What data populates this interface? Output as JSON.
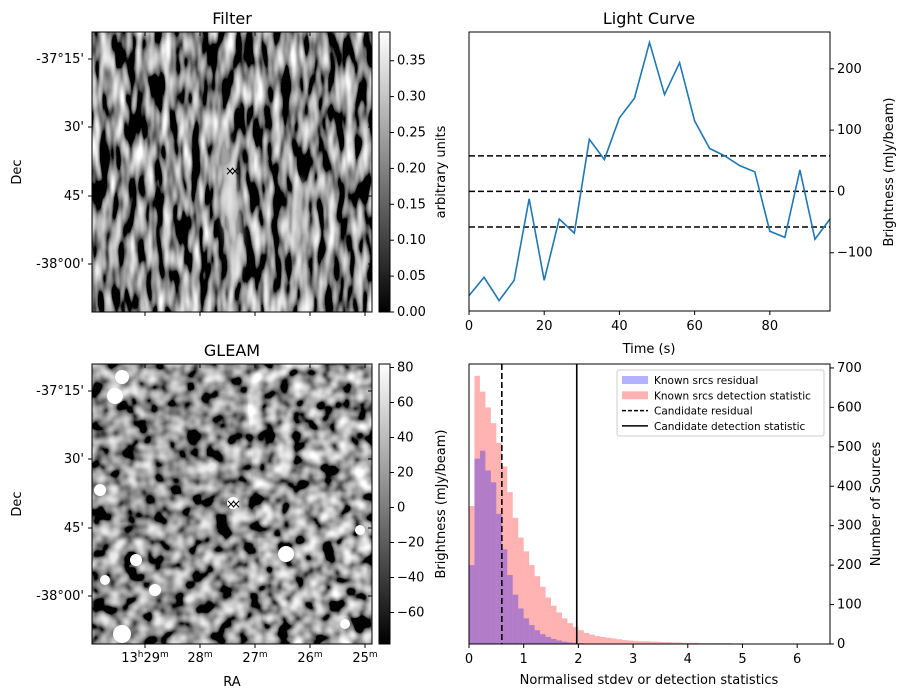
{
  "panels": {
    "filter": {
      "title": "Filter",
      "ylabel": "Dec",
      "yticks": [
        "-37°15'",
        "30'",
        "45'",
        "-38°00'"
      ],
      "colorbar": {
        "label": "arbitrary units",
        "ticks": [
          "0.00",
          "0.05",
          "0.10",
          "0.15",
          "0.20",
          "0.25",
          "0.30",
          "0.35"
        ],
        "range": [
          0,
          0.39
        ]
      }
    },
    "gleam": {
      "title": "GLEAM",
      "ylabel": "Dec",
      "xlabel": "RA",
      "yticks": [
        "-37°15'",
        "30'",
        "45'",
        "-38°00'"
      ],
      "xticks": [
        {
          "main": "13",
          "sup1": "h",
          "mid": "29",
          "sup2": "m"
        },
        {
          "main": "28",
          "sup2": "m"
        },
        {
          "main": "27",
          "sup2": "m"
        },
        {
          "main": "26",
          "sup2": "m"
        },
        {
          "main": "25",
          "sup2": "m"
        }
      ],
      "colorbar": {
        "label": "Brightness (mJy/beam)",
        "ticks": [
          "−60",
          "−40",
          "−20",
          "0",
          "20",
          "40",
          "60",
          "80"
        ],
        "range": [
          -78,
          82
        ]
      }
    }
  },
  "chart_data": [
    {
      "type": "line",
      "title": "Light Curve",
      "xlabel": "Time (s)",
      "ylabel": "Brightness (mJy/beam)",
      "xlim": [
        0,
        96
      ],
      "ylim": [
        -195,
        260
      ],
      "xticks": [
        0,
        20,
        40,
        60,
        80
      ],
      "yticks": [
        -100,
        0,
        100,
        200
      ],
      "x": [
        0,
        4,
        8,
        12,
        16,
        20,
        24,
        28,
        32,
        36,
        40,
        44,
        48,
        52,
        56,
        60,
        64,
        68,
        72,
        76,
        80,
        84,
        88,
        92,
        96
      ],
      "series": [
        {
          "color": "#1f77b4",
          "values": [
            -170,
            -140,
            -178,
            -145,
            -12,
            -145,
            -45,
            -68,
            85,
            52,
            120,
            152,
            243,
            158,
            210,
            115,
            70,
            58,
            42,
            32,
            -65,
            -75,
            35,
            -78,
            -45
          ]
        }
      ],
      "hlines": [
        58,
        0,
        -58
      ],
      "hline_style": "dashed"
    },
    {
      "type": "histogram",
      "xlabel": "Normalised stdev or detection statistics",
      "ylabel": "Number of Sources",
      "xlim": [
        0,
        6.6
      ],
      "ylim": [
        0,
        710
      ],
      "xticks": [
        0,
        1,
        2,
        3,
        4,
        5,
        6
      ],
      "yticks": [
        0,
        100,
        200,
        300,
        400,
        500,
        600,
        700
      ],
      "bin_width": 0.1,
      "series": [
        {
          "name": "Known srcs residual",
          "color": "#0000ff",
          "bin_start": 0.0,
          "values": [
            200,
            470,
            490,
            440,
            410,
            330,
            240,
            175,
            125,
            90,
            65,
            48,
            35,
            25,
            18,
            13,
            9,
            6,
            4,
            3,
            2,
            1
          ]
        },
        {
          "name": "Known srcs detection statistic",
          "color": "#ff0000",
          "bin_start": 0.0,
          "values": [
            350,
            680,
            640,
            600,
            560,
            510,
            450,
            385,
            320,
            270,
            235,
            200,
            172,
            145,
            118,
            97,
            80,
            65,
            53,
            43,
            35,
            28,
            24,
            20,
            18,
            16,
            14,
            12,
            10,
            9,
            8,
            7,
            7,
            6,
            6,
            5,
            5,
            4,
            4,
            3,
            3,
            3,
            2,
            2,
            2,
            2,
            2,
            2,
            1,
            1,
            1,
            1,
            1,
            1,
            1,
            1,
            1,
            1,
            1,
            1,
            1,
            1,
            1,
            1,
            1
          ]
        }
      ],
      "vlines": [
        {
          "name": "Candidate residual",
          "x": 0.6,
          "style": "dashed"
        },
        {
          "name": "Candidate detection statistic",
          "x": 1.97,
          "style": "solid"
        }
      ],
      "legend": "top-right"
    }
  ]
}
